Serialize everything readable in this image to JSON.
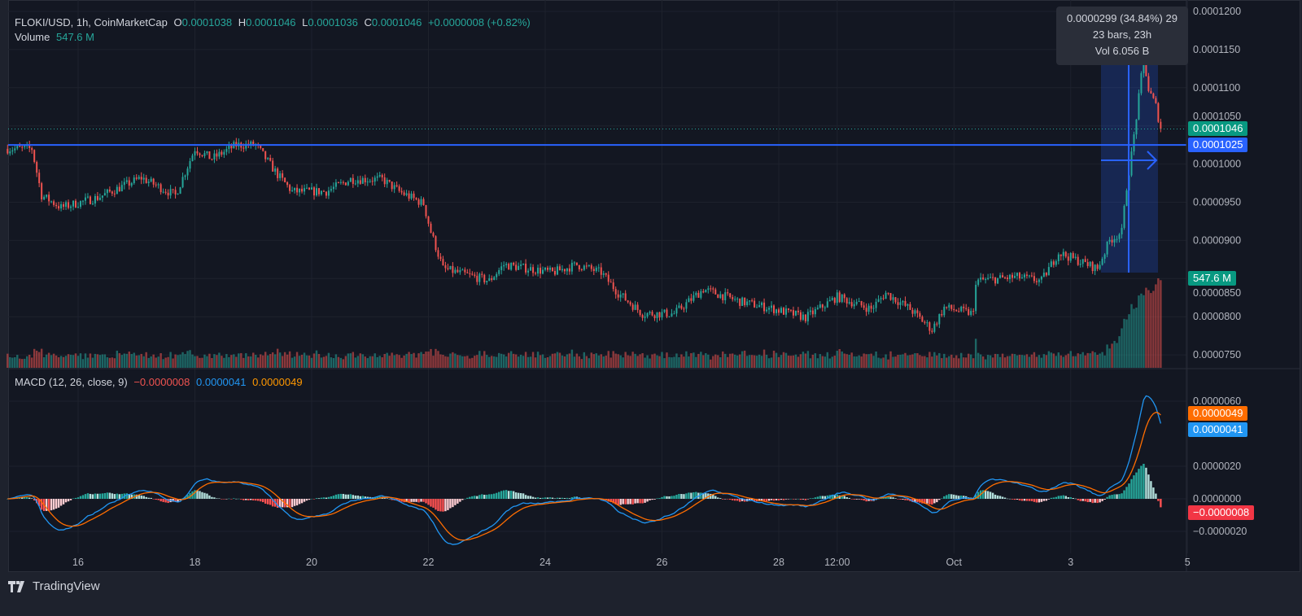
{
  "header": {
    "symbol": "FLOKI/USD, 1h, CoinMarketCap",
    "open_label": "O",
    "open": "0.0001038",
    "high_label": "H",
    "high": "0.0001046",
    "low_label": "L",
    "low": "0.0001036",
    "close_label": "C",
    "close": "0.0001046",
    "change": "+0.0000008 (+0.82%)",
    "volume_label": "Volume",
    "volume": "547.6 M"
  },
  "macd_legend": {
    "label": "MACD (12, 26, close, 9)",
    "histogram": "−0.0000008",
    "macd": "0.0000041",
    "signal": "0.0000049"
  },
  "measure_tooltip": {
    "line1": "0.0000299 (34.84%) 29",
    "line2": "23 bars, 23h",
    "line3": "Vol 6.056 B"
  },
  "badges": {
    "last_price": "0.0001046",
    "horizontal_line": "0.0001025",
    "volume": "547.6 M",
    "signal": "0.0000049",
    "macd": "0.0000041",
    "histogram": "−0.0000008"
  },
  "footer": {
    "brand": "TradingView"
  },
  "colors": {
    "up": "#26a69a",
    "down": "#ef5350",
    "macd_line": "#2196f3",
    "signal_line": "#ff6d00",
    "hline": "#2962ff",
    "background": "#131722"
  },
  "chart_data": [
    {
      "type": "candlestick",
      "interval": "1h",
      "title": "FLOKI/USD, 1h, CoinMarketCap",
      "ylim": [
        7.4e-05,
        0.000121
      ],
      "y_ticks": [
        "0.0001200",
        "0.0001150",
        "0.0001100",
        "0.0001050",
        "0.0001000",
        "0.0000950",
        "0.0000900",
        "0.0000850",
        "0.0000800",
        "0.0000750"
      ],
      "x_ticks": [
        {
          "label": "16",
          "t": "Sep 16 00:00"
        },
        {
          "label": "18",
          "t": "Sep 18 00:00"
        },
        {
          "label": "20",
          "t": "Sep 20 00:00"
        },
        {
          "label": "22",
          "t": "Sep 22 00:00"
        },
        {
          "label": "24",
          "t": "Sep 24 00:00"
        },
        {
          "label": "26",
          "t": "Sep 26 00:00"
        },
        {
          "label": "28",
          "t": "Sep 28 00:00"
        },
        {
          "label": "12:00",
          "t": "Sep 29 00:00"
        },
        {
          "label": "Oct",
          "t": "Oct 1 00:00"
        },
        {
          "label": "3",
          "t": "Oct 3 00:00"
        },
        {
          "label": "5",
          "t": "Oct 5 00:00"
        }
      ],
      "horizontal_line": 0.0001025,
      "last_price": 0.0001046,
      "grid": true,
      "approx_close_path": [
        [
          "Sep 14 19:00",
          0.000102
        ],
        [
          "Sep 15 05:00",
          0.000102
        ],
        [
          "Sep 15 09:00",
          9.59e-05
        ],
        [
          "Sep 15 17:00",
          9.43e-05
        ],
        [
          "Sep 16 08:00",
          9.56e-05
        ],
        [
          "Sep 17 02:00",
          9.82e-05
        ],
        [
          "Sep 17 16:00",
          9.59e-05
        ],
        [
          "Sep 18 00:00",
          0.000102
        ],
        [
          "Sep 18 07:00",
          0.0001007
        ],
        [
          "Sep 18 17:00",
          0.0001025
        ],
        [
          "Sep 19 01:00",
          0.0001025
        ],
        [
          "Sep 19 10:00",
          9.86e-05
        ],
        [
          "Sep 19 16:00",
          9.64e-05
        ],
        [
          "Sep 20 06:00",
          9.64e-05
        ],
        [
          "Sep 20 16:00",
          9.8e-05
        ],
        [
          "Sep 21 05:00",
          9.8e-05
        ],
        [
          "Sep 21 12:00",
          9.64e-05
        ],
        [
          "Sep 21 22:00",
          9.48e-05
        ],
        [
          "Sep 22 01:00",
          9.11e-05
        ],
        [
          "Sep 22 06:00",
          8.63e-05
        ],
        [
          "Sep 23 01:00",
          8.47e-05
        ],
        [
          "Sep 23 07:00",
          8.68e-05
        ],
        [
          "Sep 24 03:00",
          8.58e-05
        ],
        [
          "Sep 24 13:00",
          8.68e-05
        ],
        [
          "Sep 24 23:00",
          8.58e-05
        ],
        [
          "Sep 25 06:00",
          8.31e-05
        ],
        [
          "Sep 25 16:00",
          8.04e-05
        ],
        [
          "Sep 26 05:00",
          8.04e-05
        ],
        [
          "Sep 26 17:00",
          8.36e-05
        ],
        [
          "Sep 27 08:00",
          8.2e-05
        ],
        [
          "Sep 27 22:00",
          8.1e-05
        ],
        [
          "Sep 28 11:00",
          7.99e-05
        ],
        [
          "Sep 29 00:00",
          8.26e-05
        ],
        [
          "Sep 29 14:00",
          8.1e-05
        ],
        [
          "Sep 29 20:00",
          8.31e-05
        ],
        [
          "Sep 30 06:00",
          8.1e-05
        ],
        [
          "Sep 30 15:00",
          7.83e-05
        ],
        [
          "Sep 30 20:00",
          8.12e-05
        ],
        [
          "Oct 1 08:00",
          8.04e-05
        ],
        [
          "Oct 1 09:00",
          8.47e-05
        ],
        [
          "Oct 2 02:00",
          8.52e-05
        ],
        [
          "Oct 2 12:00",
          8.47e-05
        ],
        [
          "Oct 2 19:00",
          8.84e-05
        ],
        [
          "Oct 3 11:00",
          8.63e-05
        ],
        [
          "Oct 3 16:00",
          9e-05
        ],
        [
          "Oct 3 21:00",
          9.11e-05
        ],
        [
          "Oct 3 23:00",
          9.7e-05
        ],
        [
          "Oct 4 01:00",
          0.0001012
        ],
        [
          "Oct 4 04:00",
          0.0001087
        ],
        [
          "Oct 4 06:00",
          0.000114
        ],
        [
          "Oct 4 08:00",
          0.0001097
        ],
        [
          "Oct 4 11:00",
          0.0001076
        ],
        [
          "Oct 4 13:00",
          0.0001046
        ]
      ]
    },
    {
      "type": "bar",
      "title": "Volume",
      "last_value": "547.6 M"
    },
    {
      "type": "line",
      "title": "MACD (12, 26, close, 9)",
      "ylim": [
        -3e-06,
        7e-06
      ],
      "y_ticks": [
        "0.0000060",
        "0.0000020",
        "0.0000000",
        "−0.0000020"
      ],
      "series": [
        {
          "name": "MACD",
          "last": 4.1e-06
        },
        {
          "name": "Signal",
          "last": 4.9e-06
        },
        {
          "name": "Histogram",
          "last": -8e-07
        }
      ]
    }
  ]
}
